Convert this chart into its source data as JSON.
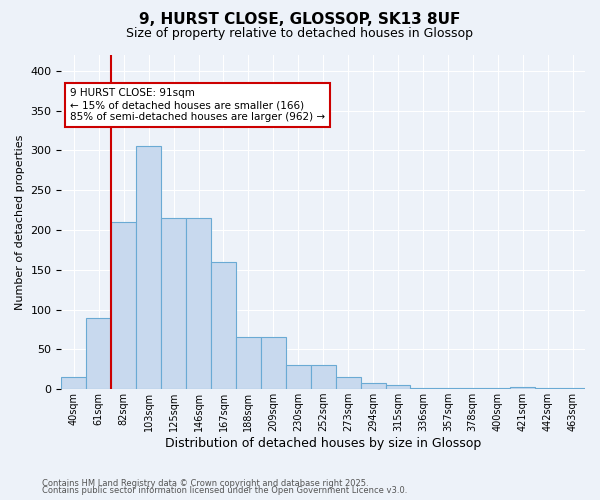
{
  "title": "9, HURST CLOSE, GLOSSOP, SK13 8UF",
  "subtitle": "Size of property relative to detached houses in Glossop",
  "xlabel": "Distribution of detached houses by size in Glossop",
  "ylabel": "Number of detached properties",
  "bar_color": "#c8d9ee",
  "bar_edge_color": "#6aaad4",
  "bar_values": [
    15,
    90,
    210,
    305,
    215,
    215,
    160,
    65,
    65,
    30,
    30,
    15,
    8,
    5,
    2,
    2,
    2,
    2,
    3,
    2,
    2
  ],
  "bin_labels": [
    "40sqm",
    "61sqm",
    "82sqm",
    "103sqm",
    "125sqm",
    "146sqm",
    "167sqm",
    "188sqm",
    "209sqm",
    "230sqm",
    "252sqm",
    "273sqm",
    "294sqm",
    "315sqm",
    "336sqm",
    "357sqm",
    "378sqm",
    "400sqm",
    "421sqm",
    "442sqm",
    "463sqm"
  ],
  "red_line_x": 2,
  "annotation_text": "9 HURST CLOSE: 91sqm\n← 15% of detached houses are smaller (166)\n85% of semi-detached houses are larger (962) →",
  "annotation_box_color": "#ffffff",
  "annotation_box_edge_color": "#cc0000",
  "footnote1": "Contains HM Land Registry data © Crown copyright and database right 2025.",
  "footnote2": "Contains public sector information licensed under the Open Government Licence v3.0.",
  "bg_color": "#edf2f9",
  "ylim": [
    0,
    420
  ],
  "figsize": [
    6.0,
    5.0
  ],
  "dpi": 100
}
